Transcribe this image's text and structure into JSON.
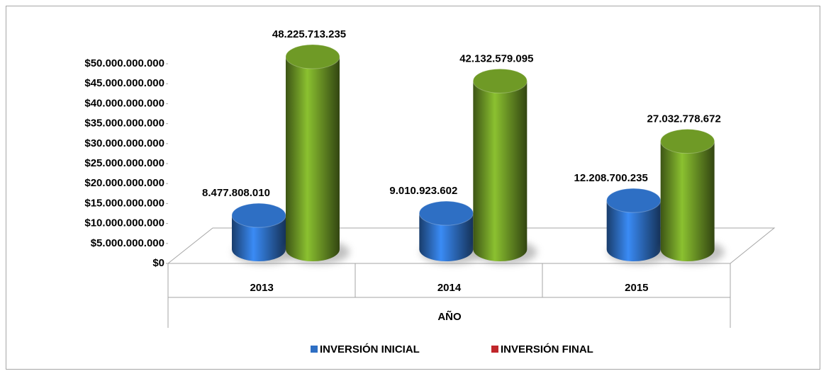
{
  "chart_data": {
    "type": "bar3d",
    "x_label": "AÑO",
    "categories": [
      "2013",
      "2014",
      "2015"
    ],
    "series": [
      {
        "name": "INVERSIÓN INICIAL",
        "color": "#2e6fc4",
        "legend_color": "#2e6fc4",
        "values": [
          8477808010,
          9010923602,
          12208700235
        ],
        "value_labels": [
          "8.477.808.010",
          "9.010.923.602",
          "12.208.700.235"
        ]
      },
      {
        "name": "INVERSIÓN FINAL",
        "color": "#6f9a26",
        "legend_color": "#c0262b",
        "values": [
          48225713235,
          42132579095,
          27032778672
        ],
        "value_labels": [
          "48.225.713.235",
          "42.132.579.095",
          "27.032.778.672"
        ]
      }
    ],
    "ylim": [
      0,
      50000000000
    ],
    "yticks": [
      {
        "value": 0,
        "label": "$0"
      },
      {
        "value": 5000000000,
        "label": "$5.000.000.000"
      },
      {
        "value": 10000000000,
        "label": "$10.000.000.000"
      },
      {
        "value": 15000000000,
        "label": "$15.000.000.000"
      },
      {
        "value": 20000000000,
        "label": "$20.000.000.000"
      },
      {
        "value": 25000000000,
        "label": "$25.000.000.000"
      },
      {
        "value": 30000000000,
        "label": "$30.000.000.000"
      },
      {
        "value": 35000000000,
        "label": "$35.000.000.000"
      },
      {
        "value": 40000000000,
        "label": "$40.000.000.000"
      },
      {
        "value": 45000000000,
        "label": "$45.000.000.000"
      },
      {
        "value": 50000000000,
        "label": "$50.000.000.000"
      }
    ],
    "legend": "bottom"
  }
}
